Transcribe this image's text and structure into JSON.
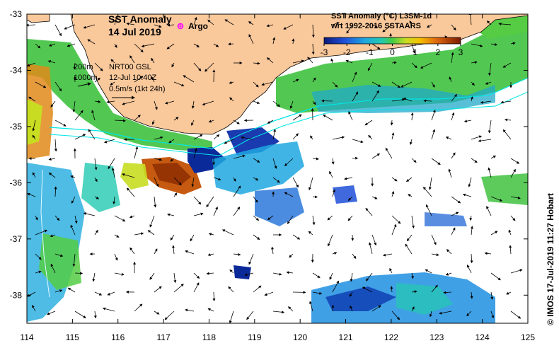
{
  "title_line1": "SST Anomaly",
  "title_line2": "14 Jul 2019",
  "argo_label": "Argo",
  "colorbar": {
    "title_line1": "SST Anomaly (°C) L3SM-1d",
    "title_line2": "wrt 1992-2016 SSTAARS",
    "ticks": [
      "-3",
      "-2",
      "-1",
      "0",
      "1",
      "2",
      "3"
    ],
    "min": -3,
    "max": 3
  },
  "legend": {
    "contour1": "200m",
    "contour2": "1000m",
    "product": "NRT00 GSL",
    "time": "12-Jul 10:40Z",
    "vector_scale": "0.5m/s (1kt 24h)"
  },
  "credit": "© IMOS 17-Jul-2019 11:27 Hobart",
  "axes": {
    "x_ticks": [
      "114",
      "115",
      "116",
      "117",
      "118",
      "119",
      "120",
      "121",
      "122",
      "123",
      "124",
      "125"
    ],
    "y_ticks": [
      "-33",
      "-34",
      "-35",
      "-36",
      "-37",
      "-38"
    ],
    "lon_range": [
      114,
      125
    ],
    "lat_range": [
      -38.5,
      -33
    ]
  },
  "colors": {
    "land": "#f9c89b",
    "argo": "#ff00ff",
    "shelf_contour": "#00e5e5"
  }
}
